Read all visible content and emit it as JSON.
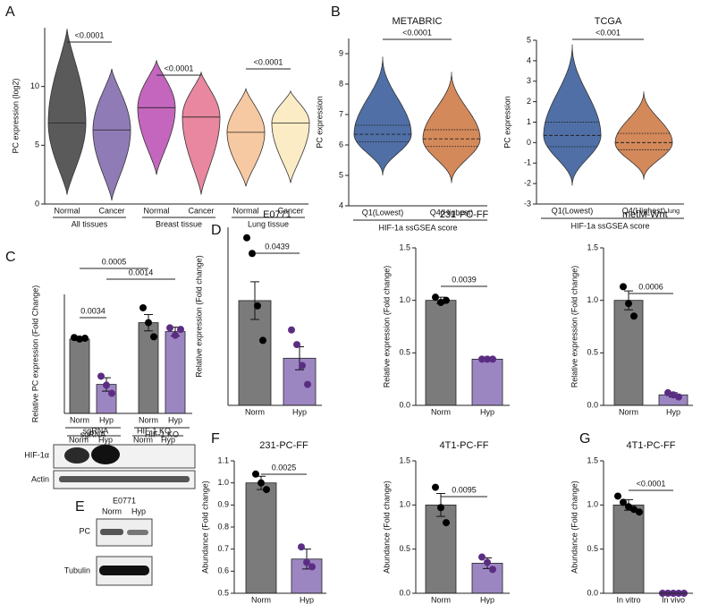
{
  "panel_labels": [
    "A",
    "B",
    "C",
    "D",
    "E",
    "F",
    "G"
  ],
  "blots": {
    "C": {
      "groups": [
        "sgRNA",
        "HIF-1 KO"
      ],
      "lanes": [
        "Norm",
        "Hyp",
        "Norm",
        "Hyp"
      ],
      "rows": [
        "HIF-1α",
        "Actin"
      ]
    },
    "E": {
      "title": "E0771",
      "lanes": [
        "Norm",
        "Hyp"
      ],
      "rows": [
        "PC",
        "Tubulin"
      ]
    }
  },
  "chart_data": [
    {
      "type": "violin",
      "ylabel": "PC expression (log2)",
      "categories": [
        "Normal",
        "Cancer",
        "Normal",
        "Cancer",
        "Normal",
        "Cancer"
      ],
      "groups": [
        "All tissues",
        "Breast tissue",
        "Lung tissue"
      ],
      "colors": [
        "#5a5a5a",
        "#8f7cb6",
        "#c466be",
        "#e8879f",
        "#f7c9a2",
        "#fbecc6"
      ],
      "medians": [
        6.9,
        6.3,
        8.2,
        7.4,
        6.1,
        6.9
      ],
      "mins": [
        0.8,
        0.3,
        2.5,
        0.8,
        1.5,
        1.8
      ],
      "maxs": [
        14.9,
        11.5,
        12.2,
        11.2,
        9.8,
        9.6
      ],
      "comparisons": [
        {
          "label": "<0.0001",
          "from": 0,
          "to": 1
        },
        {
          "label": "<0.0001",
          "from": 2,
          "to": 3
        },
        {
          "label": "<0.0001",
          "from": 4,
          "to": 5
        }
      ],
      "ylim": [
        0,
        15
      ],
      "yticks": [
        0,
        5,
        10
      ]
    },
    {
      "type": "violin",
      "title": "METABRIC",
      "ylabel": "PC expression",
      "xlabel": "HIF-1a ssGSEA score",
      "categories": [
        "Q1(Lowest)",
        "Q4(Highest)"
      ],
      "colors": [
        "#4f6fa6",
        "#d4895a"
      ],
      "medians": [
        6.35,
        6.2
      ],
      "q1s": [
        6.1,
        5.95
      ],
      "q3s": [
        6.65,
        6.5
      ],
      "mins": [
        5.0,
        4.75
      ],
      "maxs": [
        8.9,
        8.4
      ],
      "comparisons": [
        {
          "label": "<0.0001",
          "from": 0,
          "to": 1
        }
      ],
      "ylim": [
        4,
        9.5
      ],
      "yticks": [
        4,
        5,
        6,
        7,
        8,
        9
      ]
    },
    {
      "type": "violin",
      "title": "TCGA",
      "ylabel": "PC expression",
      "xlabel": "HIF-1a ssGSEA score",
      "categories": [
        "Q1(Lowest)",
        "Q4(Highest)"
      ],
      "colors": [
        "#4f6fa6",
        "#d4895a"
      ],
      "medians": [
        0.35,
        0.0
      ],
      "q1s": [
        -0.2,
        -0.35
      ],
      "q3s": [
        1.0,
        0.45
      ],
      "mins": [
        -2.1,
        -1.8
      ],
      "maxs": [
        4.8,
        2.5
      ],
      "comparisons": [
        {
          "label": "<0.001",
          "from": 0,
          "to": 1
        }
      ],
      "ylim": [
        -3,
        5
      ],
      "yticks": [
        -3,
        -2,
        -1,
        0,
        1,
        2,
        3,
        4,
        5
      ]
    },
    {
      "type": "bar",
      "ylabel": "Relative PC expression (Fold Change)",
      "categories": [
        "Norm",
        "Hyp",
        "Norm",
        "Hyp"
      ],
      "groups": [
        "sgRNA",
        "HIF-1 KO"
      ],
      "colors": [
        "#7b7b7b",
        "#9c86c2",
        "#7b7b7b",
        "#9c86c2"
      ],
      "point_colors": [
        "#000000",
        "#5b2d82",
        "#000000",
        "#5b2d82"
      ],
      "values": [
        1.0,
        0.39,
        1.22,
        1.1
      ],
      "errors": [
        0.02,
        0.09,
        0.11,
        0.06
      ],
      "points": [
        [
          1.02,
          1.0,
          1.01
        ],
        [
          0.5,
          0.38,
          0.27
        ],
        [
          1.42,
          1.22,
          1.03
        ],
        [
          1.15,
          1.05,
          1.13
        ]
      ],
      "comparisons": [
        {
          "label": "0.0034",
          "from": 0,
          "to": 1
        },
        {
          "label": "0.0005",
          "from": 0,
          "to": 2
        },
        {
          "label": "0.0014",
          "from": 1,
          "to": 3
        }
      ],
      "ylim": [
        0,
        1.6
      ]
    },
    {
      "type": "bar",
      "title": "E0771",
      "ylabel": "Relative expression (Fold change)",
      "categories": [
        "Norm",
        "Hyp"
      ],
      "colors": [
        "#7b7b7b",
        "#9c86c2"
      ],
      "point_colors": [
        "#000000",
        "#5b2d82"
      ],
      "values": [
        1.0,
        0.45
      ],
      "errors": [
        0.18,
        0.11
      ],
      "points": [
        [
          1.6,
          1.45,
          0.95,
          0.62
        ],
        [
          0.72,
          0.58,
          0.38,
          0.2
        ]
      ],
      "comparisons": [
        {
          "label": "0.0439",
          "from": 0,
          "to": 1
        }
      ],
      "ylim": [
        0,
        1.7
      ]
    },
    {
      "type": "bar",
      "title": "231-PC-FF",
      "ylabel": "Relative expression (Fold change)",
      "categories": [
        "Norm",
        "Hyp"
      ],
      "colors": [
        "#7b7b7b",
        "#9c86c2"
      ],
      "point_colors": [
        "#000000",
        "#5b2d82"
      ],
      "values": [
        1.0,
        0.44
      ],
      "errors": [
        0.03,
        0.005
      ],
      "points": [
        [
          1.03,
          0.98,
          1.0
        ],
        [
          0.44,
          0.44,
          0.44
        ]
      ],
      "comparisons": [
        {
          "label": "0.0039",
          "from": 0,
          "to": 1
        }
      ],
      "ylim": [
        0,
        1.5
      ],
      "yticks": [
        {
          "value": 0,
          "label": "0.0"
        },
        0.5,
        {
          "value": 1,
          "label": "1.0"
        },
        1.5
      ]
    },
    {
      "type": "bar",
      "title": "metM-Wnt",
      "title_superscript": "lung",
      "ylabel": "Relative expression (Fold change)",
      "categories": [
        "Norm",
        "Hyp"
      ],
      "colors": [
        "#7b7b7b",
        "#9c86c2"
      ],
      "point_colors": [
        "#000000",
        "#5b2d82"
      ],
      "values": [
        1.0,
        0.1
      ],
      "errors": [
        0.09,
        0.02
      ],
      "points": [
        [
          1.13,
          0.97,
          0.85
        ],
        [
          0.12,
          0.1,
          0.08
        ]
      ],
      "comparisons": [
        {
          "label": "0.0006",
          "from": 0,
          "to": 1
        }
      ],
      "ylim": [
        0,
        1.5
      ],
      "yticks": [
        {
          "value": 0,
          "label": "0.0"
        },
        0.5,
        {
          "value": 1,
          "label": "1.0"
        },
        1.5
      ]
    },
    {
      "type": "bar",
      "title": "231-PC-FF",
      "ylabel": "Abundance (Fold change)",
      "categories": [
        "Norm",
        "Hyp"
      ],
      "colors": [
        "#7b7b7b",
        "#9c86c2"
      ],
      "point_colors": [
        "#000000",
        "#5b2d82"
      ],
      "values": [
        1.0,
        0.655
      ],
      "errors": [
        0.03,
        0.045
      ],
      "points": [
        [
          1.04,
          1.0,
          0.97
        ],
        [
          0.71,
          0.64,
          0.62
        ]
      ],
      "comparisons": [
        {
          "label": "0.0025",
          "from": 0,
          "to": 1
        }
      ],
      "ylim": [
        0.5,
        1.1
      ],
      "yticks": [
        0.5,
        0.6,
        0.7,
        0.8,
        0.9,
        {
          "value": 1,
          "label": "1.0"
        },
        1.1
      ]
    },
    {
      "type": "bar",
      "title": "4T1-PC-FF",
      "ylabel": "Abundance (Fold change)",
      "categories": [
        "Norm",
        "Hyp"
      ],
      "colors": [
        "#7b7b7b",
        "#9c86c2"
      ],
      "point_colors": [
        "#000000",
        "#5b2d82"
      ],
      "values": [
        1.0,
        0.34
      ],
      "errors": [
        0.13,
        0.06
      ],
      "points": [
        [
          1.2,
          0.97,
          0.8
        ],
        [
          0.41,
          0.35,
          0.27
        ]
      ],
      "comparisons": [
        {
          "label": "0.0095",
          "from": 0,
          "to": 1
        }
      ],
      "ylim": [
        0,
        1.5
      ],
      "yticks": [
        {
          "value": 0,
          "label": "0.0"
        },
        0.5,
        {
          "value": 1,
          "label": "1.0"
        },
        1.5
      ]
    },
    {
      "type": "bar",
      "title": "4T1-PC-FF",
      "ylabel": "Abundance (Fold change)",
      "categories": [
        "In vitro",
        "In vivo"
      ],
      "colors": [
        "#7b7b7b",
        "#9c86c2"
      ],
      "point_colors": [
        "#000000",
        "#5b2d82"
      ],
      "values": [
        1.0,
        0.0
      ],
      "errors": [
        0.06,
        0.0
      ],
      "points": [
        [
          1.1,
          1.03,
          0.98,
          0.95,
          0.92
        ],
        [
          0,
          0,
          0,
          0,
          0
        ]
      ],
      "comparisons": [
        {
          "label": "<0.0001",
          "from": 0,
          "to": 1
        }
      ],
      "ylim": [
        0,
        1.5
      ],
      "yticks": [
        {
          "value": 0,
          "label": "0.0"
        },
        0.5,
        {
          "value": 1,
          "label": "1.0"
        },
        1.5
      ]
    }
  ]
}
